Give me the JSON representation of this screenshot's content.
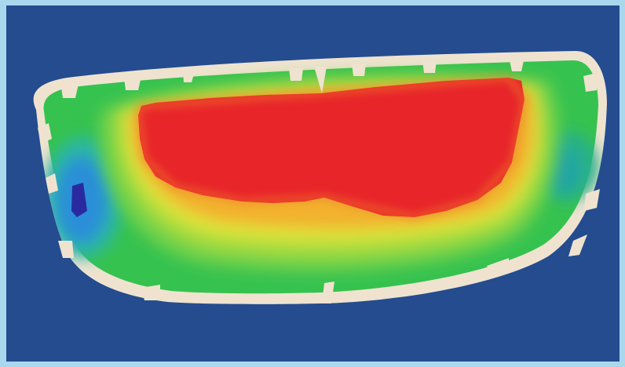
{
  "scene": {
    "subject": "",
    "colors": {
      "frame": "#a9d7ee",
      "background": "#244c8f",
      "panel_edge": "#efe3d0",
      "hot": "#e8262a",
      "warm": "#f19a2d",
      "mid": "#d6e23a",
      "cool": "#2fbf4d",
      "cold": "#1f8de0",
      "coldest": "#2a2aa0"
    }
  }
}
